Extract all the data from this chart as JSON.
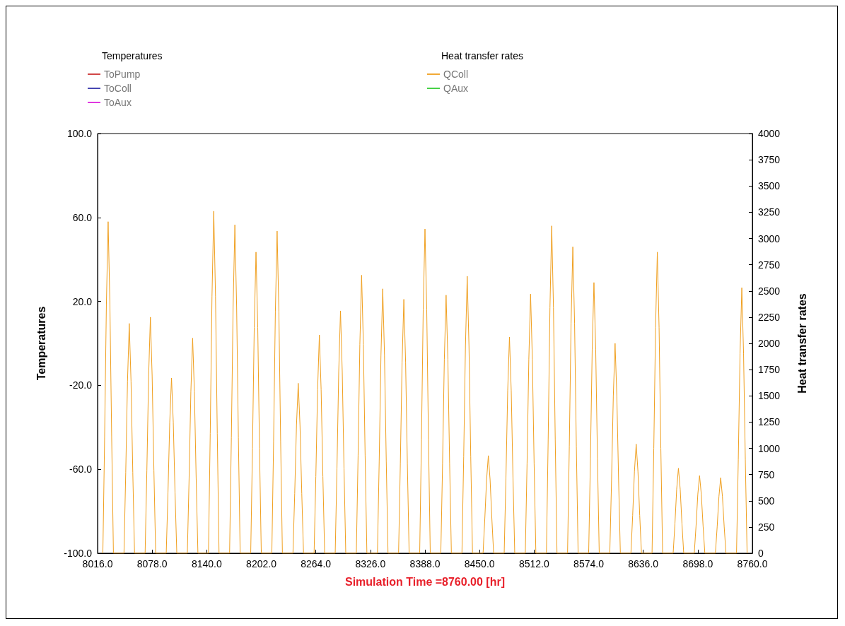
{
  "chart_data": {
    "type": "line",
    "xlabel": "Simulation Time =8760.00 [hr]",
    "ylabel": "Temperatures",
    "y2label": "Heat transfer rates",
    "legend_title": [
      "Temperatures",
      "Heat transfer rates"
    ],
    "legend": "top",
    "grid": false,
    "marker": "none",
    "line_style": "solid",
    "xlim": [
      8016,
      8760
    ],
    "xticks": [
      {
        "value": 8016,
        "label": "8016.0"
      },
      {
        "value": 8078,
        "label": "8078.0"
      },
      {
        "value": 8140,
        "label": "8140.0"
      },
      {
        "value": 8202,
        "label": "8202.0"
      },
      {
        "value": 8264,
        "label": "8264.0"
      },
      {
        "value": 8326,
        "label": "8326.0"
      },
      {
        "value": 8388,
        "label": "8388.0"
      },
      {
        "value": 8450,
        "label": "8450.0"
      },
      {
        "value": 8512,
        "label": "8512.0"
      },
      {
        "value": 8574,
        "label": "8574.0"
      },
      {
        "value": 8636,
        "label": "8636.0"
      },
      {
        "value": 8698,
        "label": "8698.0"
      },
      {
        "value": 8760,
        "label": "8760.0"
      }
    ],
    "ylim": [
      -100,
      100
    ],
    "yticks": [
      {
        "value": -100,
        "label": "-100.0"
      },
      {
        "value": -60,
        "label": "-60.0"
      },
      {
        "value": -20,
        "label": "-20.0"
      },
      {
        "value": 20,
        "label": "20.0"
      },
      {
        "value": 60,
        "label": "60.0"
      },
      {
        "value": 100,
        "label": "100.0"
      }
    ],
    "y2lim": [
      0,
      4000
    ],
    "y2ticks": [
      0,
      250,
      500,
      750,
      1000,
      1250,
      1500,
      1750,
      2000,
      2250,
      2500,
      2750,
      3000,
      3250,
      3500,
      3750,
      4000
    ],
    "series": [
      {
        "name": "ToPump",
        "color": "#cc3333"
      },
      {
        "name": "ToColl",
        "color": "#3333aa"
      },
      {
        "name": "ToAux",
        "color": "#dd22dd"
      },
      {
        "name": "QColl",
        "color": "#f0a020",
        "axis": "y2",
        "x": [
          8022,
          8024,
          8026,
          8028,
          8030,
          8032,
          8034,
          8046,
          8048,
          8050,
          8052,
          8054,
          8056,
          8058,
          8070,
          8072,
          8074,
          8076,
          8078,
          8080,
          8082,
          8094,
          8096,
          8098,
          8100,
          8102,
          8104,
          8106,
          8118,
          8120,
          8122,
          8124,
          8126,
          8128,
          8130,
          8142,
          8144,
          8146,
          8148,
          8150,
          8152,
          8154,
          8166,
          8168,
          8170,
          8172,
          8174,
          8176,
          8178,
          8190,
          8192,
          8194,
          8196,
          8198,
          8200,
          8202,
          8214,
          8216,
          8218,
          8220,
          8222,
          8224,
          8226,
          8238,
          8240,
          8242,
          8244,
          8246,
          8248,
          8250,
          8262,
          8264,
          8266,
          8268,
          8270,
          8272,
          8274,
          8286,
          8288,
          8290,
          8292,
          8294,
          8296,
          8298,
          8310,
          8312,
          8314,
          8316,
          8318,
          8320,
          8322,
          8334,
          8336,
          8338,
          8340,
          8342,
          8344,
          8346,
          8358,
          8360,
          8362,
          8364,
          8366,
          8368,
          8370,
          8382,
          8384,
          8386,
          8388,
          8390,
          8392,
          8394,
          8406,
          8408,
          8410,
          8412,
          8414,
          8416,
          8418,
          8430,
          8432,
          8434,
          8436,
          8438,
          8440,
          8442,
          8454,
          8456,
          8458,
          8460,
          8462,
          8464,
          8466,
          8478,
          8480,
          8482,
          8484,
          8486,
          8488,
          8490,
          8502,
          8504,
          8506,
          8508,
          8510,
          8512,
          8514,
          8526,
          8528,
          8530,
          8532,
          8534,
          8536,
          8538,
          8550,
          8552,
          8554,
          8556,
          8558,
          8560,
          8562,
          8574,
          8576,
          8578,
          8580,
          8582,
          8584,
          8586,
          8598,
          8600,
          8602,
          8604,
          8606,
          8608,
          8610,
          8622,
          8624,
          8626,
          8628,
          8630,
          8632,
          8634,
          8646,
          8648,
          8650,
          8652,
          8654,
          8656,
          8658,
          8670,
          8672,
          8674,
          8676,
          8678,
          8680,
          8682,
          8694,
          8696,
          8698,
          8700,
          8702,
          8704,
          8706,
          8718,
          8720,
          8722,
          8724,
          8726,
          8728,
          8730,
          8742,
          8744,
          8746,
          8748,
          8750,
          8752,
          8754
        ],
        "values": [
          0,
          1110,
          2370,
          3160,
          2370,
          1110,
          0,
          0,
          770,
          1640,
          2190,
          1640,
          770,
          0,
          0,
          790,
          1690,
          2250,
          1690,
          790,
          0,
          0,
          580,
          1250,
          1670,
          1250,
          580,
          0,
          0,
          720,
          1540,
          2050,
          1540,
          720,
          0,
          0,
          1140,
          2450,
          3260,
          2450,
          1140,
          0,
          0,
          1100,
          2350,
          3130,
          2350,
          1100,
          0,
          0,
          1000,
          2150,
          2870,
          2150,
          1000,
          0,
          0,
          1070,
          2300,
          3070,
          2300,
          1070,
          0,
          0,
          570,
          1220,
          1620,
          1220,
          570,
          0,
          0,
          730,
          1560,
          2080,
          1560,
          730,
          0,
          0,
          810,
          1730,
          2310,
          1730,
          810,
          0,
          0,
          930,
          1990,
          2650,
          1990,
          930,
          0,
          0,
          880,
          1890,
          2520,
          1890,
          880,
          0,
          0,
          850,
          1820,
          2420,
          1820,
          850,
          0,
          0,
          1080,
          2320,
          3090,
          2320,
          1080,
          0,
          0,
          860,
          1850,
          2460,
          1850,
          860,
          0,
          0,
          920,
          1980,
          2640,
          1980,
          920,
          0,
          0,
          330,
          700,
          930,
          700,
          330,
          0,
          0,
          720,
          1550,
          2060,
          1550,
          720,
          0,
          0,
          860,
          1850,
          2470,
          1850,
          860,
          0,
          0,
          1090,
          2340,
          3120,
          2340,
          1090,
          0,
          0,
          1020,
          2190,
          2920,
          2190,
          1020,
          0,
          0,
          900,
          1940,
          2580,
          1940,
          900,
          0,
          0,
          700,
          1500,
          2000,
          1500,
          700,
          0,
          0,
          360,
          780,
          1040,
          780,
          360,
          0,
          0,
          1000,
          2150,
          2870,
          2150,
          1000,
          0,
          0,
          280,
          610,
          810,
          610,
          280,
          0,
          0,
          260,
          560,
          740,
          560,
          260,
          0,
          0,
          250,
          540,
          720,
          540,
          250,
          0,
          0,
          890,
          1900,
          2530,
          1900,
          890,
          0
        ]
      },
      {
        "name": "QAux",
        "color": "#33cc33",
        "axis": "y2"
      }
    ]
  }
}
